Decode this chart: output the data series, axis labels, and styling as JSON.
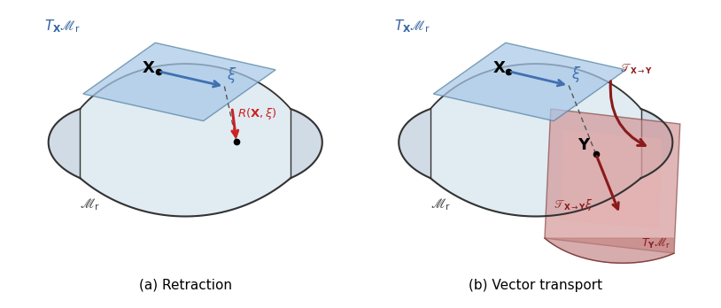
{
  "fig_width": 8.14,
  "fig_height": 3.48,
  "dpi": 100,
  "bg_color": "#ffffff",
  "caption_left": "(a) Retraction",
  "caption_right": "(b) Vector transport",
  "manifold_fill": "#dce8f0",
  "manifold_edge_color": "#333333",
  "tangent_plane_color_blue": "#a8c8e8",
  "tangent_plane_color_red": "#c87878",
  "tangent_plane_edge_blue": "#5080a0",
  "tangent_plane_edge_red": "#804040",
  "arrow_blue_color": "#4070b0",
  "arrow_red_color": "#cc2222",
  "arrow_darkred_color": "#8b1a1a",
  "label_blue_color": "#3060a0",
  "label_darkred_color": "#8b1a1a",
  "text_color": "#000000"
}
